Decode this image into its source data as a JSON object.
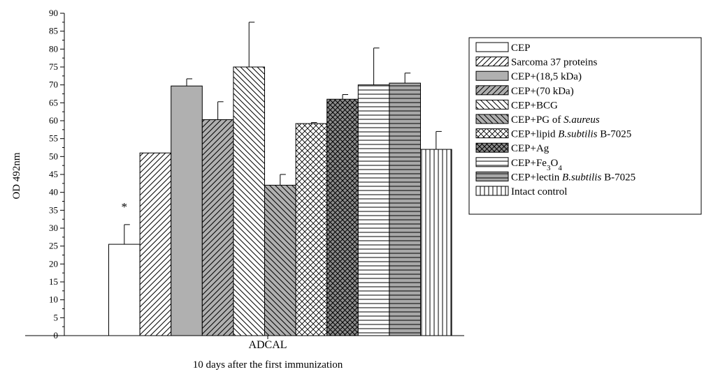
{
  "chart_data": {
    "type": "bar",
    "xlabel": "10 days after the first immunization",
    "ylabel": "OD 492nm",
    "ylim": [
      0,
      90
    ],
    "ytick_step": 5,
    "categories": [
      "ADCAL"
    ],
    "annotation": "*",
    "legend_position": "right",
    "series": [
      {
        "name": "CEP",
        "value": 25.5,
        "error": 5.5,
        "pattern": "white",
        "annotation": "*"
      },
      {
        "name": "Sarcoma 37 proteins",
        "value": 51,
        "error": 0,
        "pattern": "hatch-fwd"
      },
      {
        "name": "CEP+(18,5 kDa)",
        "value": 69.7,
        "error": 2,
        "pattern": "solid-gray"
      },
      {
        "name": "CEP+(70 kDa)",
        "value": 60.3,
        "error": 5,
        "pattern": "hatch-fwd-gray"
      },
      {
        "name": "CEP+BCG",
        "value": 75,
        "error": 12.5,
        "pattern": "hatch-back"
      },
      {
        "name": "CEP+PG of S.aureus",
        "value": 42,
        "error": 3,
        "pattern": "hatch-back-gray"
      },
      {
        "name": "CEP+lipid B.subtilis B-7025",
        "value": 59.2,
        "error": 0.3,
        "pattern": "crosshatch"
      },
      {
        "name": "CEP+Ag",
        "value": 66,
        "error": 1.3,
        "pattern": "crosshatch-gray"
      },
      {
        "name": "CEP+Fe3O4",
        "value": 70,
        "error": 10.3,
        "pattern": "horiz"
      },
      {
        "name": "CEP+lectin B.subtilis B-7025",
        "value": 70.5,
        "error": 2.8,
        "pattern": "horiz-gray"
      },
      {
        "name": "Intact control",
        "value": 52,
        "error": 5,
        "pattern": "vert"
      }
    ],
    "legend": [
      {
        "parts": [
          {
            "t": "CEP"
          }
        ]
      },
      {
        "parts": [
          {
            "t": "Sarcoma 37 proteins"
          }
        ]
      },
      {
        "parts": [
          {
            "t": "CEP+(18,5 kDa)"
          }
        ]
      },
      {
        "parts": [
          {
            "t": "CEP+(70 kDa)"
          }
        ]
      },
      {
        "parts": [
          {
            "t": "CEP+BCG"
          }
        ]
      },
      {
        "parts": [
          {
            "t": "CEP+PG of "
          },
          {
            "t": "S.aureus",
            "i": true
          }
        ]
      },
      {
        "parts": [
          {
            "t": "CEP+lipid "
          },
          {
            "t": "B.subtilis",
            "i": true
          },
          {
            "t": " B-7025"
          }
        ]
      },
      {
        "parts": [
          {
            "t": " CEP+Ag"
          }
        ]
      },
      {
        "parts": [
          {
            "t": " CEP+Fe"
          },
          {
            "t": "3",
            "sub": true
          },
          {
            "t": "O"
          },
          {
            "t": "4",
            "sub": true
          }
        ]
      },
      {
        "parts": [
          {
            "t": "CEP+lectin "
          },
          {
            "t": "B.subtilis",
            "i": true
          },
          {
            "t": " B-7025"
          }
        ]
      },
      {
        "parts": [
          {
            "t": " Intact control"
          }
        ]
      }
    ]
  }
}
